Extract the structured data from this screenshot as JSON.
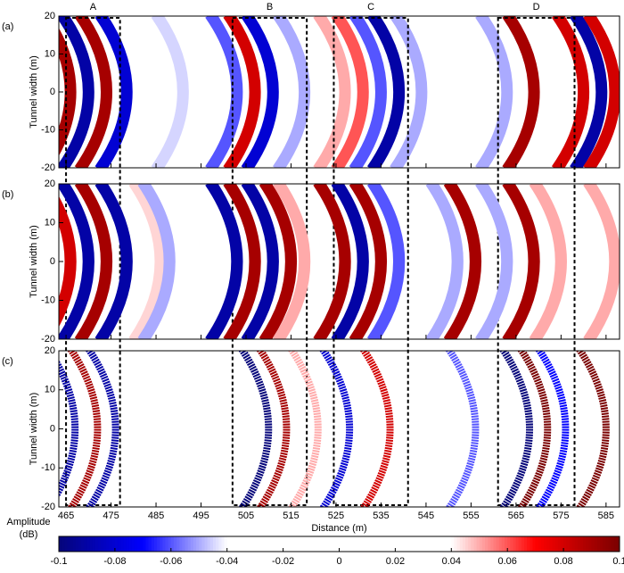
{
  "chart_data": [
    {
      "type": "heatmap",
      "title": "(a)",
      "ylabel": "Tunnel width (m)",
      "xlim": [
        463.4,
        588
      ],
      "ylim": [
        -20,
        20
      ],
      "yticks": [
        -20,
        -10,
        0,
        10,
        20
      ],
      "xticks": [
        465,
        475,
        485,
        495,
        505,
        515,
        525,
        535,
        545,
        555,
        565,
        575,
        585
      ],
      "regions": [
        {
          "label": "A",
          "xlim": [
            465,
            477
          ]
        },
        {
          "label": "B",
          "xlim": [
            502,
            518.5
          ]
        },
        {
          "label": "C",
          "xlim": [
            524.5,
            541
          ]
        },
        {
          "label": "D",
          "xlim": [
            561,
            578
          ]
        }
      ],
      "stripes": {
        "x": [
          466,
          470,
          474,
          478.5,
          491,
          503,
          507,
          511,
          518,
          527,
          531,
          535,
          539,
          544,
          563,
          569,
          580,
          584,
          587
        ],
        "amplitude": [
          0.09,
          -0.09,
          0.09,
          -0.08,
          -0.045,
          -0.06,
          0.08,
          -0.08,
          -0.05,
          0.05,
          0.06,
          -0.06,
          -0.09,
          -0.05,
          -0.05,
          0.09,
          0.08,
          -0.09,
          0.08
        ]
      }
    },
    {
      "type": "heatmap",
      "title": "(b)",
      "ylabel": "Tunnel width (m)",
      "xlim": [
        463.4,
        588
      ],
      "ylim": [
        -20,
        20
      ],
      "yticks": [
        -20,
        -10,
        0,
        10,
        20
      ],
      "xticks": [
        465,
        475,
        485,
        495,
        505,
        515,
        525,
        535,
        545,
        555,
        565,
        575,
        585
      ],
      "stripes": {
        "x": [
          466,
          470,
          474,
          478.5,
          486,
          488,
          503,
          507,
          511,
          515,
          518,
          527,
          531,
          535,
          539,
          552,
          556,
          563,
          569,
          575,
          587
        ],
        "amplitude": [
          0.08,
          -0.09,
          0.09,
          -0.09,
          0.045,
          -0.05,
          -0.09,
          0.09,
          -0.09,
          0.09,
          0.05,
          0.09,
          -0.09,
          0.09,
          -0.06,
          -0.05,
          0.09,
          -0.05,
          0.09,
          0.05,
          0.05
        ]
      }
    },
    {
      "type": "heatmap",
      "title": "(c)",
      "ylabel": "Tunnel width (m)",
      "xlabel": "Distance (m)",
      "xlim": [
        463.4,
        588
      ],
      "ylim": [
        -20,
        20
      ],
      "yticks": [
        -20,
        -10,
        0,
        10,
        20
      ],
      "xticks": [
        465,
        475,
        485,
        495,
        505,
        515,
        525,
        535,
        545,
        555,
        565,
        575,
        585
      ],
      "stripes": {
        "x": [
          467,
          472,
          476,
          486,
          510,
          514,
          521,
          528,
          537,
          556,
          568,
          572,
          576,
          585
        ],
        "amplitude": [
          -0.09,
          0.09,
          -0.09,
          -0.04,
          -0.1,
          0.09,
          0.05,
          -0.08,
          0.08,
          -0.06,
          -0.1,
          0.1,
          -0.07,
          0.1
        ]
      }
    },
    {
      "type": "colorbar",
      "label": [
        "Amplitude",
        "(dB)"
      ],
      "xlim": [
        -0.1,
        0.1
      ],
      "xticks": [
        -0.1,
        -0.08,
        -0.06,
        -0.04,
        -0.02,
        0,
        0.02,
        0.04,
        0.06,
        0.08,
        0.1
      ],
      "colormap": [
        {
          "value": -0.1,
          "color": "#05057a"
        },
        {
          "value": -0.07,
          "color": "#0000ff"
        },
        {
          "value": -0.04,
          "color": "#ffffff"
        },
        {
          "value": 0.04,
          "color": "#ffffff"
        },
        {
          "value": 0.07,
          "color": "#ff0000"
        },
        {
          "value": 0.1,
          "color": "#7a0000"
        }
      ]
    }
  ]
}
